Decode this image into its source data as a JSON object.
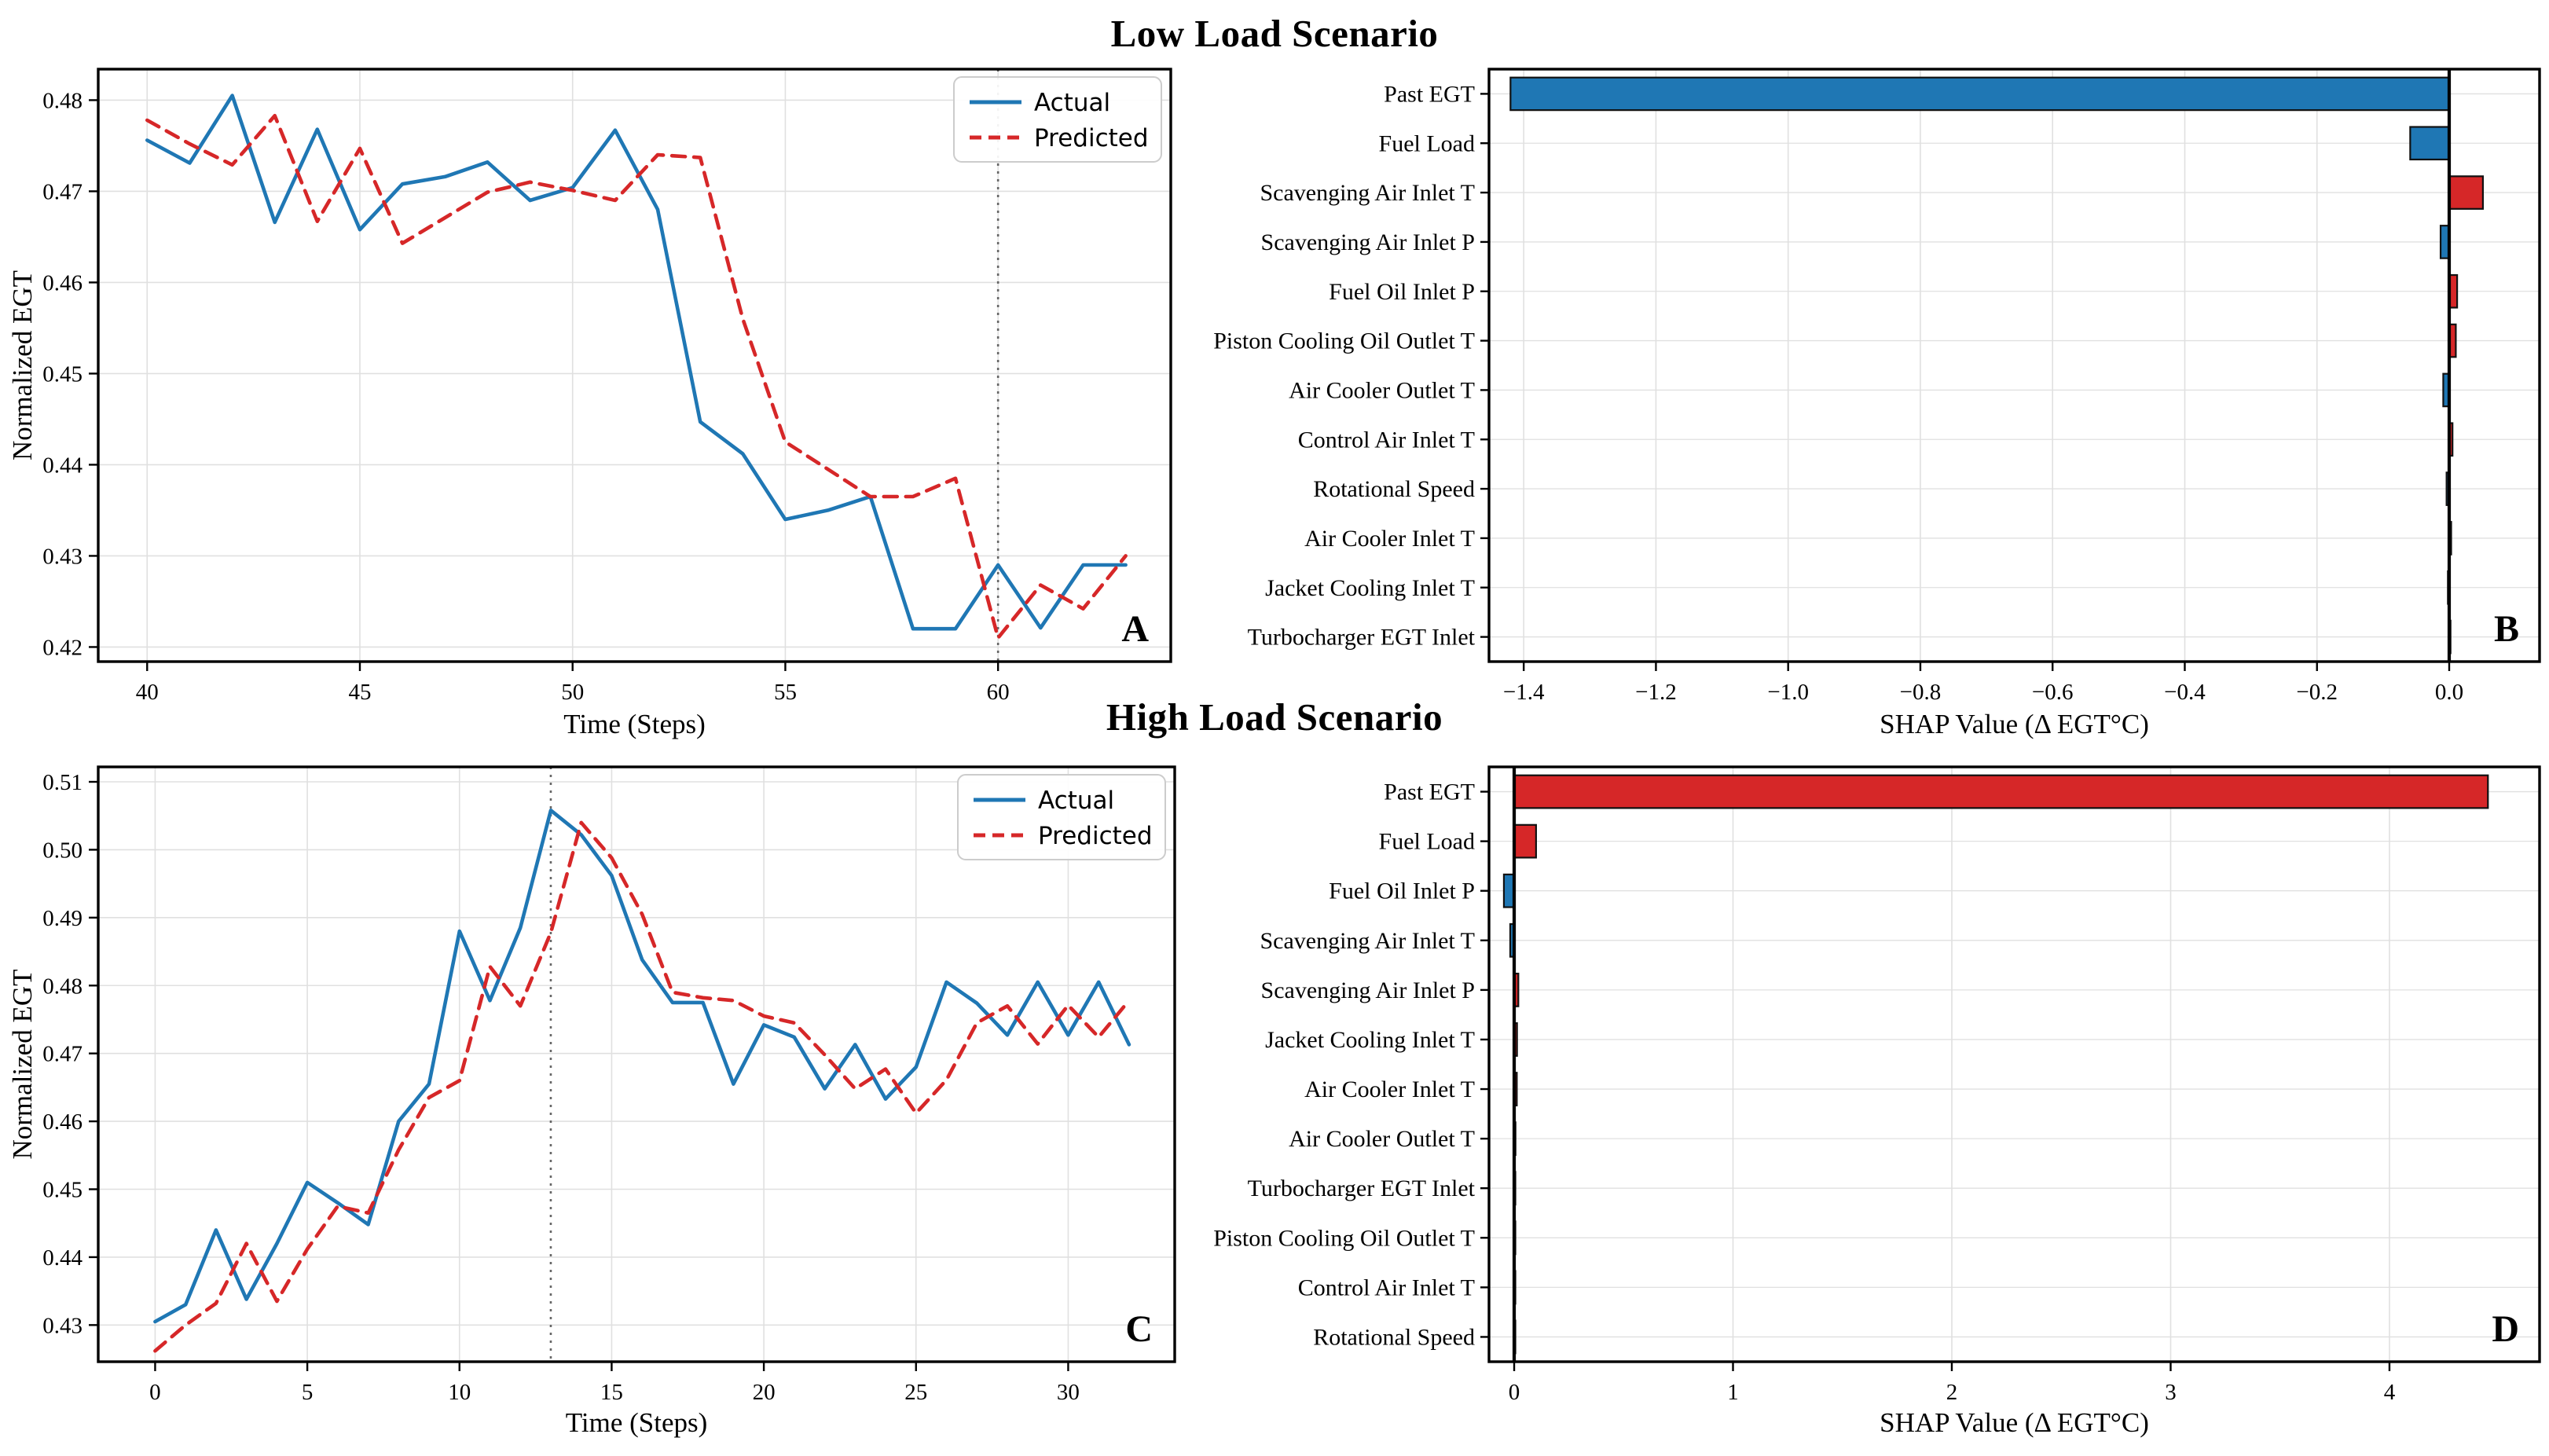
{
  "titles": {
    "low_load": "Low Load Scenario",
    "high_load": "High Load Scenario"
  },
  "colors": {
    "actual_line": "#1f77b4",
    "predicted_line": "#d62728",
    "positive_bar": "#d62728",
    "negative_bar": "#1f77b4",
    "bar_edge": "#111111",
    "grid": "#e0e0e0",
    "spine": "#000000",
    "vline_dotted": "#666666",
    "zero_line": "#000000",
    "legend_border": "#cccccc"
  },
  "legend": {
    "items": [
      {
        "label": "Actual",
        "color": "#1f77b4",
        "dashed": false
      },
      {
        "label": "Predicted",
        "color": "#d62728",
        "dashed": true
      }
    ]
  },
  "chart_data": [
    {
      "id": "A",
      "type": "line",
      "panel_label": "A",
      "scenario": "Low Load Scenario",
      "xlabel": "Time (Steps)",
      "ylabel": "Normalized EGT",
      "xlim": [
        38.85,
        64.06
      ],
      "ylim": [
        0.4184,
        0.4834
      ],
      "xticks": [
        {
          "v": 40,
          "label": "40"
        },
        {
          "v": 45,
          "label": "45"
        },
        {
          "v": 50,
          "label": "50"
        },
        {
          "v": 55,
          "label": "55"
        },
        {
          "v": 60,
          "label": "60"
        }
      ],
      "yticks": [
        {
          "v": 0.42,
          "label": "0.42"
        },
        {
          "v": 0.43,
          "label": "0.43"
        },
        {
          "v": 0.44,
          "label": "0.44"
        },
        {
          "v": 0.45,
          "label": "0.45"
        },
        {
          "v": 0.46,
          "label": "0.46"
        },
        {
          "v": 0.47,
          "label": "0.47"
        },
        {
          "v": 0.48,
          "label": "0.48"
        }
      ],
      "vline_x": 60,
      "x": [
        40,
        41,
        42,
        43,
        44,
        45,
        46,
        47,
        48,
        49,
        50,
        51,
        52,
        53,
        54,
        55,
        56,
        57,
        58,
        59,
        60,
        61,
        62,
        63
      ],
      "series": [
        {
          "name": "Actual",
          "values": [
            0.4756,
            0.4731,
            0.4805,
            0.4666,
            0.4768,
            0.4658,
            0.4708,
            0.4716,
            0.4732,
            0.469,
            0.4704,
            0.4767,
            0.468,
            0.4447,
            0.4412,
            0.434,
            0.435,
            0.4365,
            0.422,
            0.422,
            0.429,
            0.4221,
            0.429,
            0.429
          ]
        },
        {
          "name": "Predicted",
          "values": [
            0.4778,
            0.4752,
            0.4729,
            0.4783,
            0.4667,
            0.4747,
            0.4643,
            0.4671,
            0.4699,
            0.471,
            0.4701,
            0.469,
            0.474,
            0.4737,
            0.456,
            0.4425,
            0.4395,
            0.4365,
            0.4365,
            0.4385,
            0.421,
            0.4268,
            0.4242,
            0.43
          ]
        }
      ],
      "legend_visible": true
    },
    {
      "id": "B",
      "type": "bar",
      "panel_label": "B",
      "scenario": "Low Load Scenario",
      "xlabel": "SHAP Value (Δ EGT°C)",
      "xlim": [
        -1.4525,
        0.1367
      ],
      "xticks": [
        {
          "v": -1.4,
          "label": "−1.4"
        },
        {
          "v": -1.2,
          "label": "−1.2"
        },
        {
          "v": -1.0,
          "label": "−1.0"
        },
        {
          "v": -0.8,
          "label": "−0.8"
        },
        {
          "v": -0.6,
          "label": "−0.6"
        },
        {
          "v": -0.4,
          "label": "−0.4"
        },
        {
          "v": -0.2,
          "label": "−0.2"
        },
        {
          "v": 0.0,
          "label": "0.0"
        }
      ],
      "categories": [
        "Past EGT",
        "Fuel Load",
        "Scavenging Air Inlet T",
        "Scavenging Air Inlet P",
        "Fuel Oil Inlet P",
        "Piston Cooling Oil Outlet T",
        "Air Cooler Outlet T",
        "Control Air Inlet T",
        "Rotational Speed",
        "Air Cooler Inlet T",
        "Jacket Cooling Inlet T",
        "Turbocharger EGT Inlet"
      ],
      "values": [
        -1.42,
        -0.059,
        0.051,
        -0.013,
        0.012,
        0.01,
        -0.009,
        0.005,
        -0.004,
        0.003,
        -0.002,
        0.002
      ]
    },
    {
      "id": "C",
      "type": "line",
      "panel_label": "C",
      "scenario": "High Load Scenario",
      "xlabel": "Time (Steps)",
      "ylabel": "Normalized EGT",
      "xlim": [
        -1.87,
        33.5
      ],
      "ylim": [
        0.4246,
        0.5122
      ],
      "xticks": [
        {
          "v": 0,
          "label": "0"
        },
        {
          "v": 5,
          "label": "5"
        },
        {
          "v": 10,
          "label": "10"
        },
        {
          "v": 15,
          "label": "15"
        },
        {
          "v": 20,
          "label": "20"
        },
        {
          "v": 25,
          "label": "25"
        },
        {
          "v": 30,
          "label": "30"
        }
      ],
      "yticks": [
        {
          "v": 0.43,
          "label": "0.43"
        },
        {
          "v": 0.44,
          "label": "0.44"
        },
        {
          "v": 0.45,
          "label": "0.45"
        },
        {
          "v": 0.46,
          "label": "0.46"
        },
        {
          "v": 0.47,
          "label": "0.47"
        },
        {
          "v": 0.48,
          "label": "0.48"
        },
        {
          "v": 0.49,
          "label": "0.49"
        },
        {
          "v": 0.5,
          "label": "0.50"
        },
        {
          "v": 0.51,
          "label": "0.51"
        }
      ],
      "vline_x": 13,
      "x": [
        0,
        1,
        2,
        3,
        4,
        5,
        6,
        7,
        8,
        9,
        10,
        11,
        12,
        13,
        14,
        15,
        16,
        17,
        18,
        19,
        20,
        21,
        22,
        23,
        24,
        25,
        26,
        27,
        28,
        29,
        30,
        31,
        32
      ],
      "series": [
        {
          "name": "Actual",
          "values": [
            0.4305,
            0.433,
            0.444,
            0.4338,
            0.442,
            0.451,
            0.448,
            0.4448,
            0.46,
            0.4655,
            0.488,
            0.4778,
            0.4885,
            0.5058,
            0.5022,
            0.4962,
            0.4838,
            0.4775,
            0.4775,
            0.4655,
            0.4742,
            0.4724,
            0.4648,
            0.4713,
            0.4633,
            0.468,
            0.4805,
            0.4774,
            0.4727,
            0.4805,
            0.4727,
            0.4805,
            0.4713
          ]
        },
        {
          "name": "Predicted",
          "values": [
            0.4262,
            0.43,
            0.4332,
            0.442,
            0.4335,
            0.4412,
            0.4475,
            0.4465,
            0.4558,
            0.4635,
            0.466,
            0.4828,
            0.477,
            0.4878,
            0.504,
            0.4988,
            0.4905,
            0.479,
            0.4782,
            0.4778,
            0.4755,
            0.4745,
            0.4698,
            0.4648,
            0.4677,
            0.4612,
            0.4661,
            0.4745,
            0.477,
            0.4714,
            0.4771,
            0.4724,
            0.4778
          ]
        }
      ],
      "legend_visible": true
    },
    {
      "id": "D",
      "type": "bar",
      "panel_label": "D",
      "scenario": "High Load Scenario",
      "xlabel": "SHAP Value (Δ EGT°C)",
      "xlim": [
        -0.115,
        4.686
      ],
      "xticks": [
        {
          "v": 0,
          "label": "0"
        },
        {
          "v": 1,
          "label": "1"
        },
        {
          "v": 2,
          "label": "2"
        },
        {
          "v": 3,
          "label": "3"
        },
        {
          "v": 4,
          "label": "4"
        }
      ],
      "categories": [
        "Past EGT",
        "Fuel Load",
        "Fuel Oil Inlet P",
        "Scavenging Air Inlet T",
        "Scavenging Air Inlet P",
        "Jacket Cooling Inlet T",
        "Air Cooler Inlet T",
        "Air Cooler Outlet T",
        "Turbocharger EGT Inlet",
        "Piston Cooling Oil Outlet T",
        "Control Air Inlet T",
        "Rotational Speed"
      ],
      "values": [
        4.45,
        0.1,
        -0.047,
        -0.018,
        0.019,
        0.013,
        0.012,
        0.006,
        0.005,
        0.003,
        0.002,
        0.001
      ]
    }
  ]
}
